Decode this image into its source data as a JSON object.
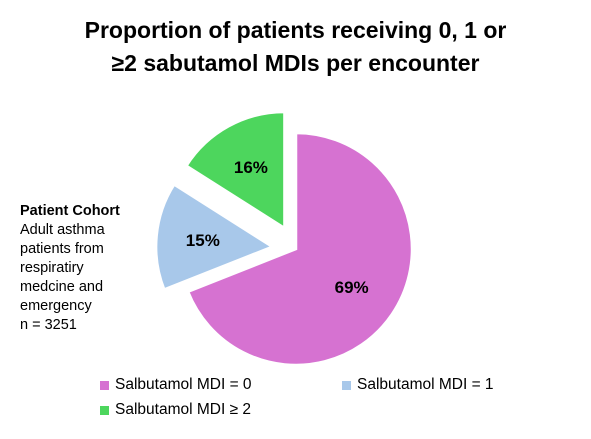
{
  "chart_data": {
    "type": "pie",
    "title": "Proportion of patients receiving  0, 1 or\n≥2 sabutamol MDIs per encounter",
    "slices": [
      {
        "name": "Salbutamol MDI = 0",
        "value": 69,
        "label": "69%",
        "color": "#d672d1",
        "exploded": false
      },
      {
        "name": "Salbutamol MDI = 1",
        "value": 15,
        "label": "15%",
        "color": "#a8c8ea",
        "exploded": true
      },
      {
        "name": "Salbutamol MDI ≥ 2",
        "value": 16,
        "label": "16%",
        "color": "#4dd65d",
        "exploded": true
      }
    ],
    "legend_position": "bottom"
  },
  "annotation": {
    "title": "Patient Cohort",
    "lines": [
      "Adult asthma",
      "patients from",
      "respiratiry",
      "medcine and",
      "emergency",
      "n = 3251"
    ]
  }
}
